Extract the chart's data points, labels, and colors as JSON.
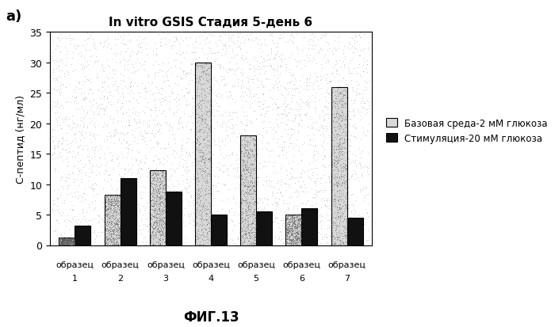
{
  "title": "In vitro GSIS Стадия 5-день 6",
  "ylabel": "С-пептид (нг/мл)",
  "xlabel_fig": "ФИГ.13",
  "n_samples": 7,
  "base_values": [
    1.2,
    8.3,
    12.3,
    30.0,
    18.0,
    5.0,
    26.0
  ],
  "stim_values": [
    3.2,
    11.0,
    8.8,
    5.0,
    5.5,
    6.0,
    4.5
  ],
  "base_color": "#b0b0b0",
  "stim_color": "#111111",
  "legend_base": "Базовая среда-2 мМ глюкоза",
  "legend_stim": "Стимуляция-20 мМ глюкоза",
  "ylim": [
    0,
    35
  ],
  "yticks": [
    0,
    5,
    10,
    15,
    20,
    25,
    30,
    35
  ],
  "label_a": "a)",
  "bar_width": 0.35
}
